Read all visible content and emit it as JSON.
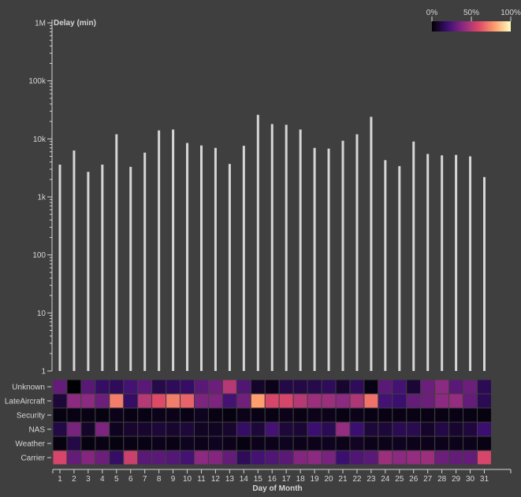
{
  "chart_data": [
    {
      "type": "bar",
      "scale": "log",
      "ylabel": "Delay (min)",
      "ylim": [
        1,
        1000000
      ],
      "y_ticks": [
        "1",
        "10",
        "100",
        "1k",
        "10k",
        "100k",
        "1M"
      ],
      "categories": [
        "1",
        "2",
        "3",
        "4",
        "5",
        "6",
        "7",
        "8",
        "9",
        "10",
        "11",
        "12",
        "13",
        "14",
        "15",
        "16",
        "17",
        "18",
        "19",
        "20",
        "21",
        "22",
        "23",
        "24",
        "25",
        "26",
        "27",
        "28",
        "29",
        "30",
        "31"
      ],
      "values": [
        3600,
        6300,
        2700,
        3600,
        12000,
        3300,
        5800,
        14000,
        14500,
        8500,
        7700,
        7000,
        3700,
        7600,
        26000,
        18000,
        17500,
        14500,
        7000,
        6800,
        9300,
        12000,
        24000,
        4300,
        3400,
        9000,
        5500,
        5200,
        5300,
        5000,
        2200
      ]
    },
    {
      "type": "heatmap",
      "xlabel": "Day of Month",
      "rows": [
        "Unknown",
        "LateAircraft",
        "Security",
        "NAS",
        "Weather",
        "Carrier"
      ],
      "columns": [
        "1",
        "2",
        "3",
        "4",
        "5",
        "6",
        "7",
        "8",
        "9",
        "10",
        "11",
        "12",
        "13",
        "14",
        "15",
        "16",
        "17",
        "18",
        "19",
        "20",
        "21",
        "22",
        "23",
        "24",
        "25",
        "26",
        "27",
        "28",
        "29",
        "30",
        "31"
      ],
      "values": [
        [
          0.3,
          0.0,
          0.27,
          0.18,
          0.16,
          0.22,
          0.28,
          0.13,
          0.16,
          0.18,
          0.28,
          0.32,
          0.5,
          0.25,
          0.07,
          0.04,
          0.12,
          0.12,
          0.13,
          0.16,
          0.08,
          0.16,
          0.03,
          0.28,
          0.22,
          0.09,
          0.32,
          0.4,
          0.28,
          0.32,
          0.15
        ],
        [
          0.1,
          0.4,
          0.4,
          0.32,
          0.72,
          0.18,
          0.5,
          0.6,
          0.72,
          0.66,
          0.36,
          0.36,
          0.22,
          0.33,
          0.8,
          0.58,
          0.58,
          0.5,
          0.44,
          0.44,
          0.4,
          0.48,
          0.7,
          0.22,
          0.2,
          0.3,
          0.32,
          0.4,
          0.42,
          0.3,
          0.15
        ],
        [
          0.02,
          0.03,
          0.03,
          0.02,
          0.04,
          0.03,
          0.03,
          0.04,
          0.04,
          0.03,
          0.05,
          0.03,
          0.02,
          0.04,
          0.03,
          0.03,
          0.04,
          0.03,
          0.04,
          0.04,
          0.03,
          0.04,
          0.03,
          0.03,
          0.03,
          0.03,
          0.03,
          0.03,
          0.03,
          0.03,
          0.02
        ],
        [
          0.12,
          0.35,
          0.07,
          0.36,
          0.05,
          0.08,
          0.08,
          0.1,
          0.08,
          0.1,
          0.06,
          0.06,
          0.08,
          0.18,
          0.1,
          0.22,
          0.1,
          0.09,
          0.2,
          0.15,
          0.42,
          0.2,
          0.1,
          0.1,
          0.15,
          0.14,
          0.07,
          0.12,
          0.08,
          0.11,
          0.2
        ],
        [
          0.02,
          0.12,
          0.02,
          0.03,
          0.02,
          0.03,
          0.03,
          0.04,
          0.03,
          0.05,
          0.04,
          0.05,
          0.04,
          0.02,
          0.04,
          0.04,
          0.05,
          0.04,
          0.04,
          0.05,
          0.04,
          0.06,
          0.04,
          0.04,
          0.05,
          0.04,
          0.04,
          0.04,
          0.04,
          0.04,
          0.03
        ],
        [
          0.58,
          0.3,
          0.38,
          0.32,
          0.18,
          0.55,
          0.28,
          0.28,
          0.26,
          0.22,
          0.4,
          0.38,
          0.3,
          0.16,
          0.22,
          0.25,
          0.28,
          0.38,
          0.4,
          0.35,
          0.2,
          0.25,
          0.28,
          0.44,
          0.4,
          0.42,
          0.44,
          0.32,
          0.3,
          0.3,
          0.58
        ]
      ]
    }
  ],
  "legend": {
    "labels": [
      "0%",
      "50%",
      "100%"
    ],
    "stops": [
      "#000004",
      "#3b0f70",
      "#8c2981",
      "#de4968",
      "#fe9f6d",
      "#fcfdbf"
    ]
  },
  "colors": {
    "background": "#3f3f3f",
    "bar": "#d6d6d6",
    "text": "#d6d6d6",
    "axis": "#d6d6d6",
    "grid_stroke": "#3f3f3f"
  }
}
